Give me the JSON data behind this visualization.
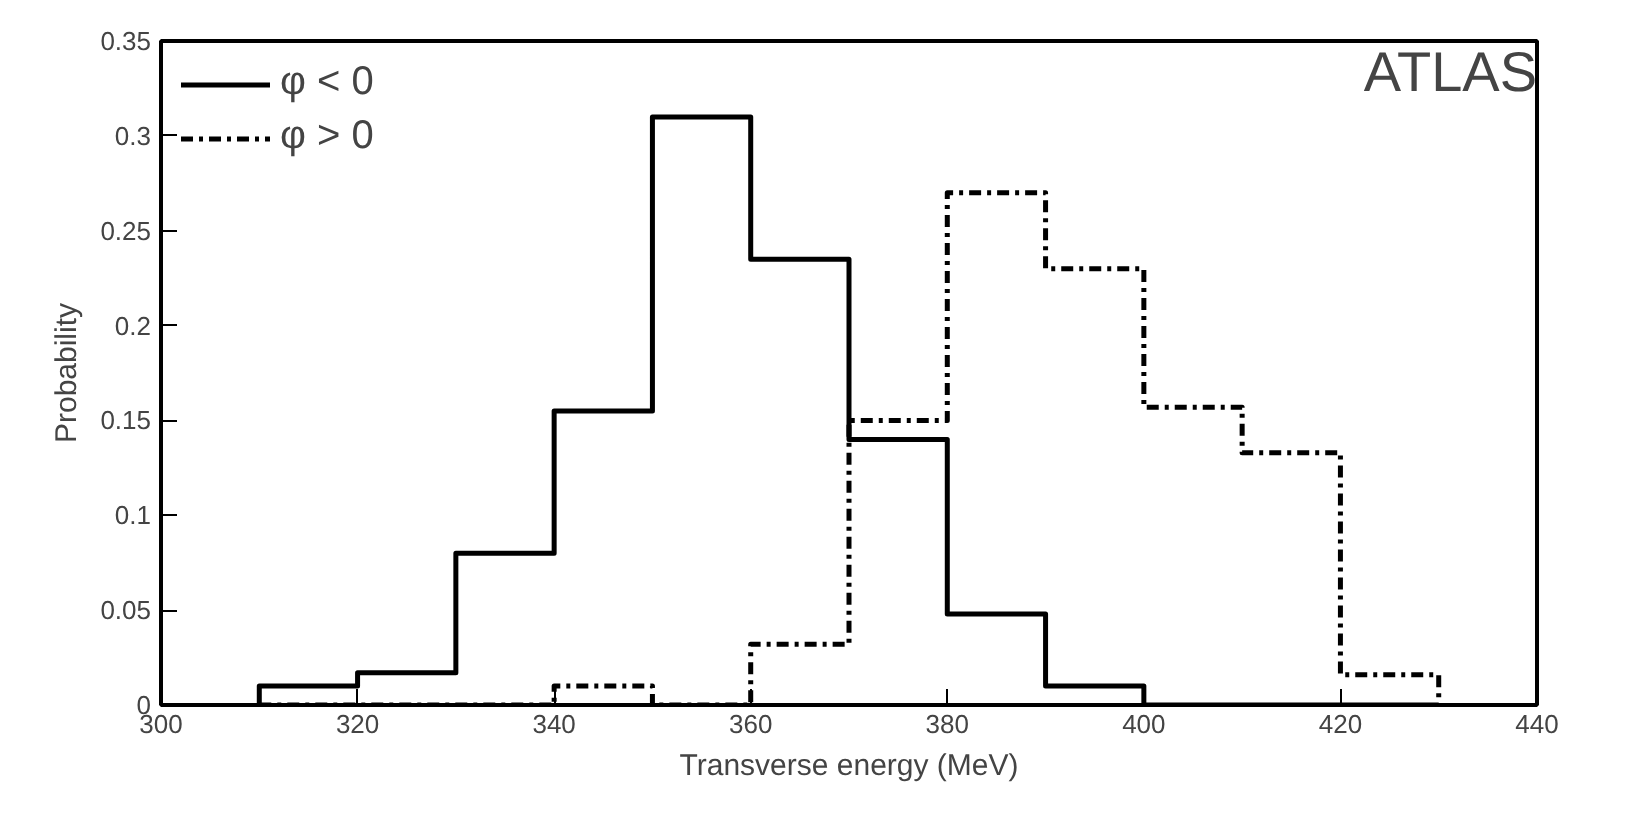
{
  "chart_data": {
    "type": "histogram",
    "xlabel": "Transverse energy (MeV)",
    "ylabel": "Probability",
    "bins": [
      310,
      320,
      330,
      340,
      350,
      360,
      370,
      380,
      390,
      400,
      410,
      420,
      430
    ],
    "series": [
      {
        "name": "φ < 0",
        "color": "#000000",
        "line_style": "solid",
        "values": [
          0.01,
          0.017,
          0.08,
          0.155,
          0.31,
          0.235,
          0.14,
          0.048,
          0.01,
          0,
          0,
          0
        ]
      },
      {
        "name": "φ > 0",
        "color": "#000000",
        "line_style": "dashed",
        "values": [
          0,
          0,
          0,
          0.01,
          0,
          0.032,
          0.15,
          0.27,
          0.23,
          0.157,
          0.133,
          0.016
        ]
      }
    ],
    "xlim": [
      300,
      440
    ],
    "xticks": [
      300,
      320,
      340,
      360,
      380,
      400,
      420,
      440
    ],
    "ylim": [
      0,
      0.35
    ],
    "yticks": [
      0,
      0.05,
      0.1,
      0.15,
      0.2,
      0.25,
      0.3,
      0.35
    ],
    "annotations": [
      "ATLAS"
    ],
    "legend": "top left",
    "grid": false
  }
}
